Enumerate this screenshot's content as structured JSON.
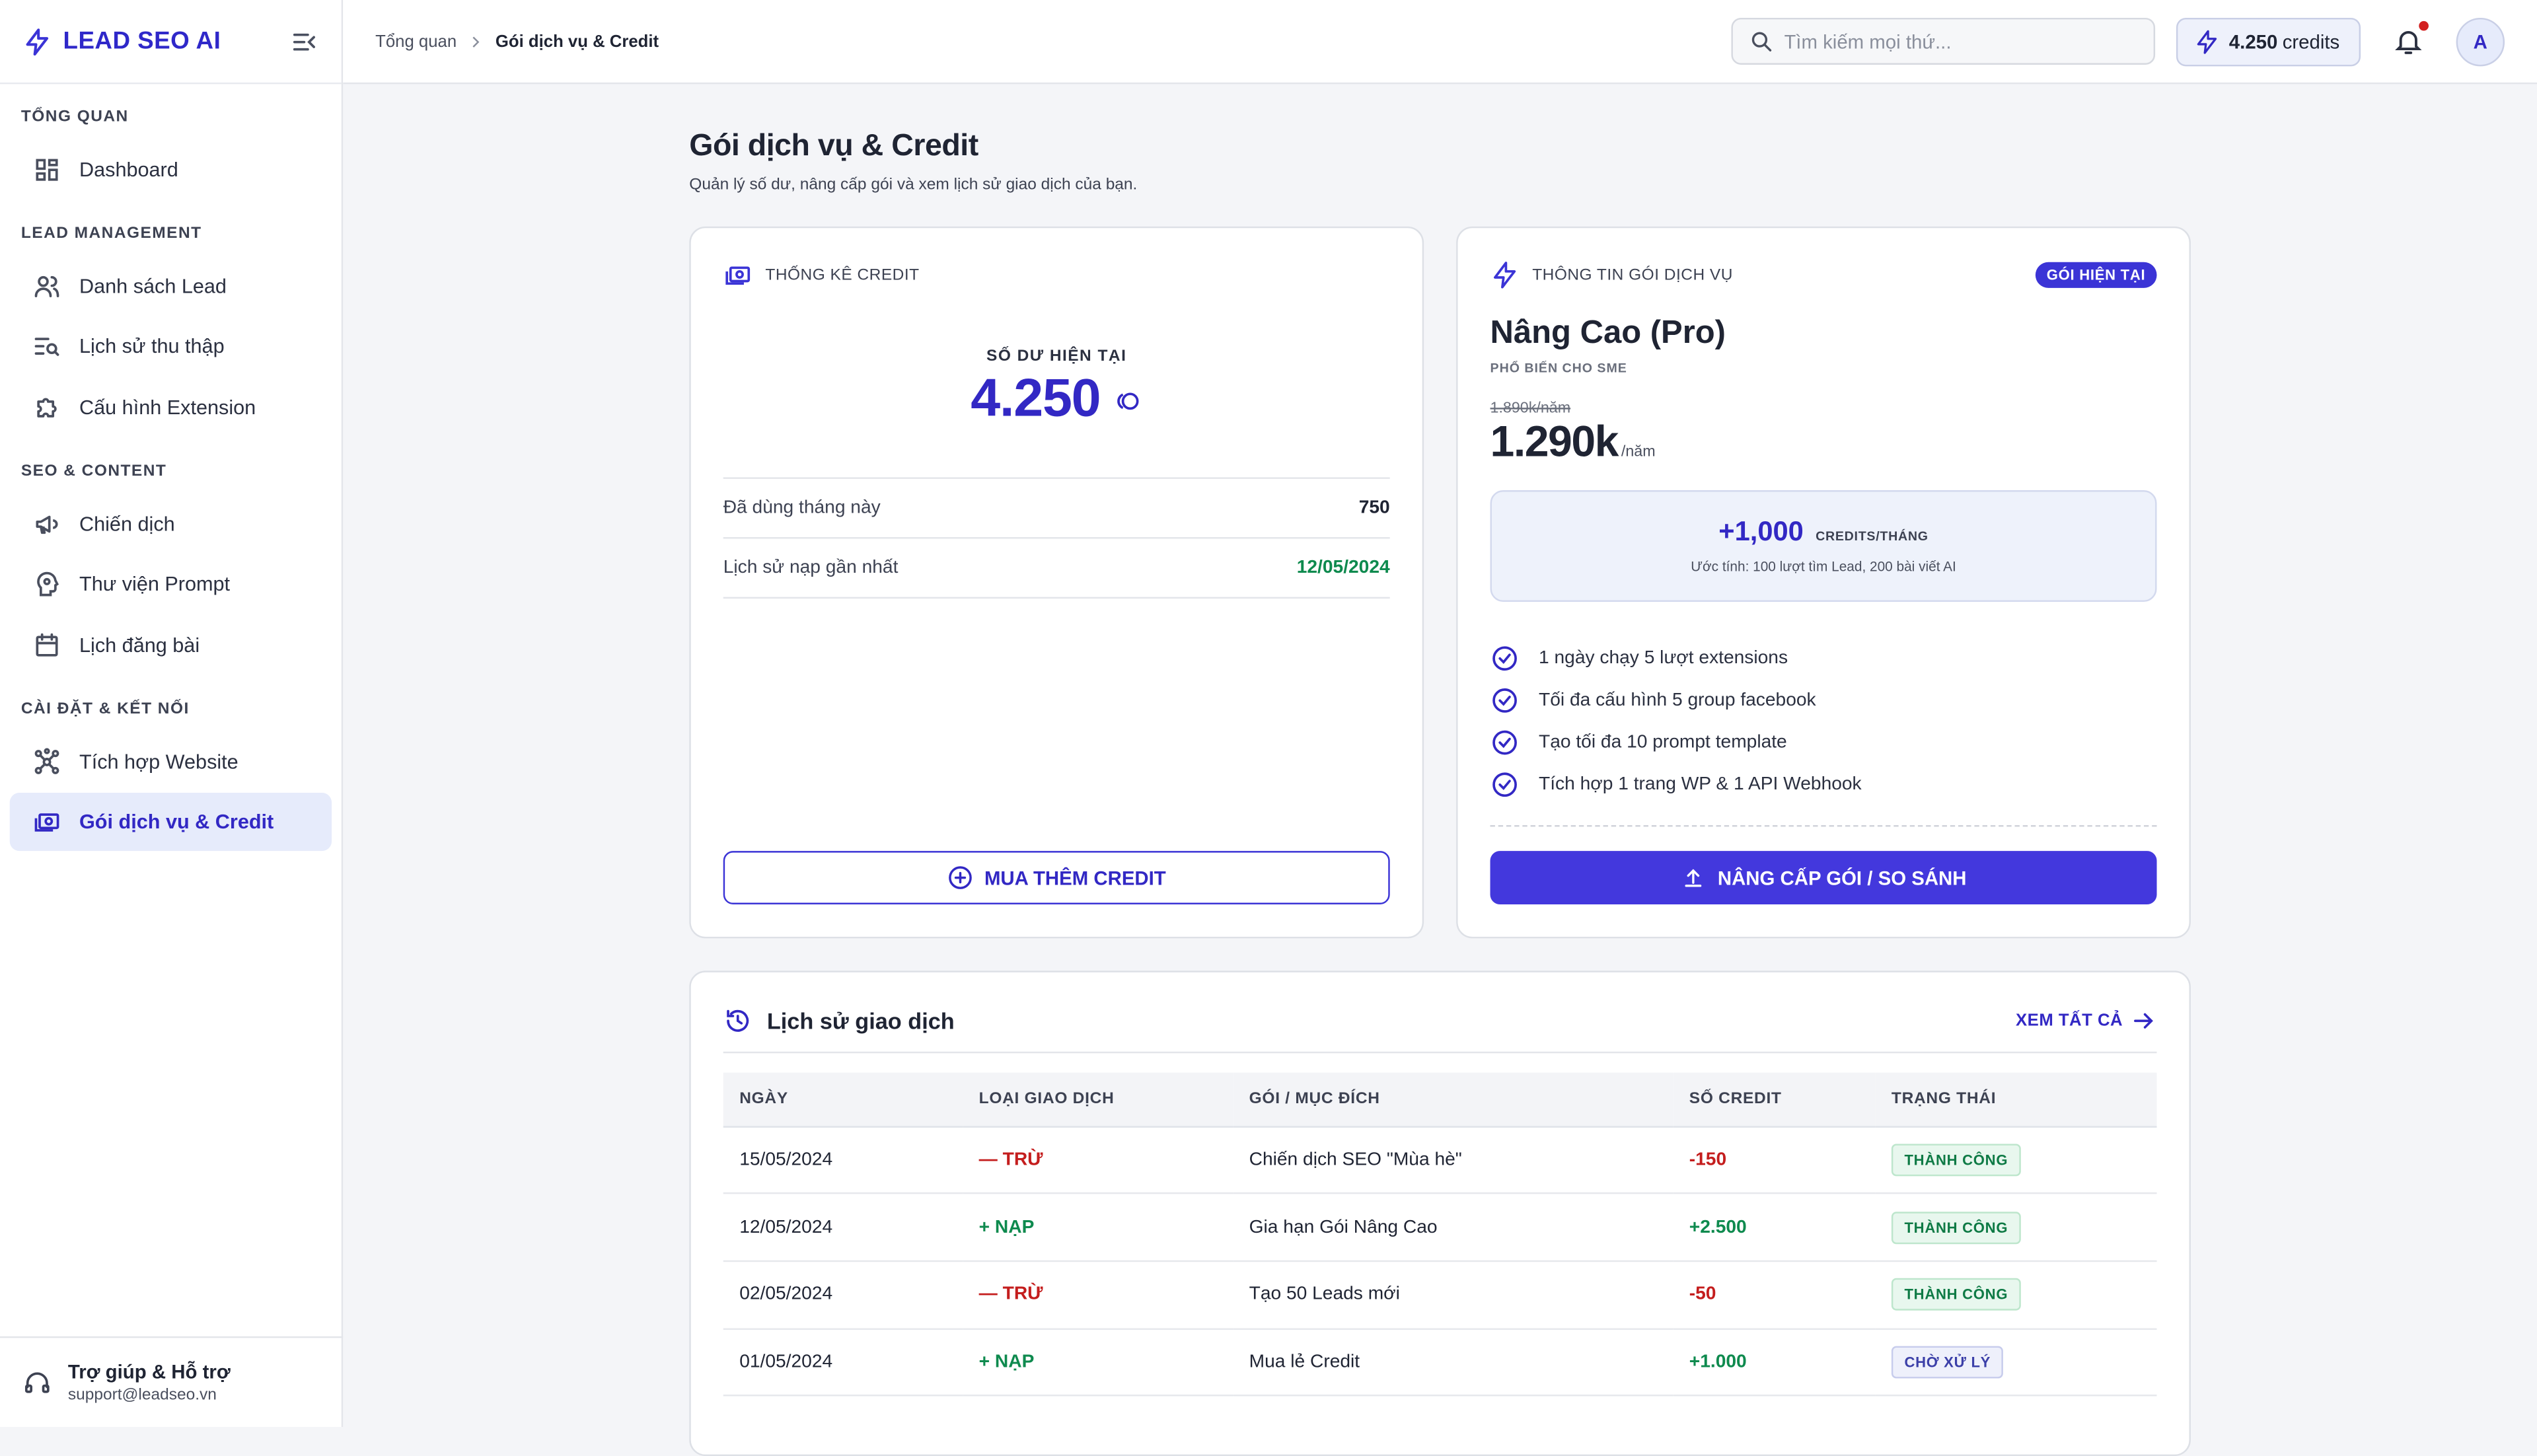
{
  "app": {
    "brand": "LEAD SEO AI"
  },
  "sidebar": {
    "groups": [
      {
        "heading": "TỔNG QUAN",
        "items": [
          {
            "label": "Dashboard",
            "icon": "dashboard-icon"
          }
        ]
      },
      {
        "heading": "LEAD MANAGEMENT",
        "items": [
          {
            "label": "Danh sách Lead",
            "icon": "users-icon"
          },
          {
            "label": "Lịch sử thu thập",
            "icon": "list-search-icon"
          },
          {
            "label": "Cấu hình Extension",
            "icon": "puzzle-icon"
          }
        ]
      },
      {
        "heading": "SEO & CONTENT",
        "items": [
          {
            "label": "Chiến dịch",
            "icon": "megaphone-icon"
          },
          {
            "label": "Thư viện Prompt",
            "icon": "brain-icon"
          },
          {
            "label": "Lịch đăng bài",
            "icon": "calendar-icon"
          }
        ]
      },
      {
        "heading": "CÀI ĐẶT & KẾT NỐI",
        "items": [
          {
            "label": "Tích hợp Website",
            "icon": "network-icon"
          },
          {
            "label": "Gói dịch vụ & Credit",
            "icon": "cash-icon",
            "active": true
          }
        ]
      }
    ],
    "help": {
      "title": "Trợ giúp & Hỗ trợ",
      "email": "support@leadseo.vn"
    }
  },
  "header": {
    "breadcrumb": {
      "root": "Tổng quan",
      "current": "Gói dịch vụ & Credit"
    },
    "search": {
      "placeholder": "Tìm kiếm mọi thứ...",
      "value": ""
    },
    "credits": {
      "value": "4.250",
      "unit": "credits"
    },
    "avatar": "A"
  },
  "page": {
    "title": "Gói dịch vụ & Credit",
    "subtitle": "Quản lý số dư, nâng cấp gói và xem lịch sử giao dịch của bạn."
  },
  "credit_card": {
    "heading": "THỐNG KÊ CREDIT",
    "balance_label": "SỐ DƯ HIỆN TẠI",
    "balance_value": "4.250",
    "rows": [
      {
        "label": "Đã dùng tháng này",
        "value": "750"
      },
      {
        "label": "Lịch sử nạp gần nhất",
        "value": "12/05/2024"
      }
    ],
    "buy_button": "MUA THÊM CREDIT"
  },
  "plan_card": {
    "heading": "THÔNG TIN GÓI DỊCH VỤ",
    "badge": "GÓI HIỆN TẠI",
    "name": "Nâng Cao (Pro)",
    "tag": "PHỔ BIẾN CHO SME",
    "old_price": "1.890k/năm",
    "price": "1.290k",
    "price_unit": "/năm",
    "credits_amount": "+1,000",
    "credits_unit": "CREDITS/THÁNG",
    "credits_note": "Ước tính: 100 lượt tìm Lead, 200 bài viết AI",
    "features": [
      "1 ngày chạy 5 lượt extensions",
      "Tối đa cấu hình 5 group facebook",
      "Tạo tối đa 10 prompt template",
      "Tích hợp 1 trang WP & 1 API Webhook"
    ],
    "upgrade_button": "NÂNG CẤP GÓI / SO SÁNH"
  },
  "transactions": {
    "title": "Lịch sử giao dịch",
    "view_all": "XEM TẤT CẢ",
    "columns": [
      "NGÀY",
      "LOẠI GIAO DỊCH",
      "GÓI / MỤC ĐÍCH",
      "SỐ CREDIT",
      "TRẠNG THÁI"
    ],
    "rows": [
      {
        "date": "15/05/2024",
        "type": "— TRỪ",
        "purpose": "Chiến dịch SEO \"Mùa hè\"",
        "amount": "-150",
        "status": "THÀNH CÔNG"
      },
      {
        "date": "12/05/2024",
        "type": "+ NẠP",
        "purpose": "Gia hạn Gói Nâng Cao",
        "amount": "+2.500",
        "status": "THÀNH CÔNG"
      },
      {
        "date": "02/05/2024",
        "type": "— TRỪ",
        "purpose": "Tạo 50 Leads mới",
        "amount": "-50",
        "status": "THÀNH CÔNG"
      },
      {
        "date": "01/05/2024",
        "type": "+ NẠP",
        "purpose": "Mua lẻ Credit",
        "amount": "+1.000",
        "status": "CHỜ XỬ LÝ"
      }
    ]
  },
  "colors": {
    "accent": "#3b34d6",
    "success": "#0e8a4e",
    "danger": "#c41d1d"
  }
}
